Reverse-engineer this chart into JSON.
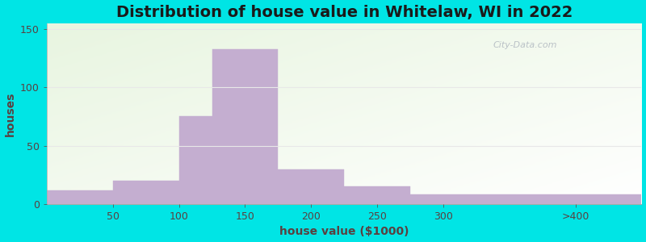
{
  "title": "Distribution of house value in Whitelaw, WI in 2022",
  "xlabel": "house value ($1000)",
  "ylabel": "houses",
  "bar_edges": [
    0,
    50,
    100,
    125,
    175,
    225,
    275,
    325,
    450
  ],
  "bar_values": [
    12,
    20,
    75,
    133,
    30,
    15,
    8,
    8
  ],
  "bar_color": "#c4aed0",
  "bar_edge_color": "#c4aed0",
  "xtick_positions": [
    50,
    100,
    150,
    200,
    250,
    300,
    400
  ],
  "xtick_labels": [
    "50",
    "100",
    "150",
    "200",
    "250",
    "300",
    ">400"
  ],
  "ytick_values": [
    0,
    50,
    100,
    150
  ],
  "xlim": [
    0,
    450
  ],
  "ylim": [
    0,
    155
  ],
  "background_outer": "#00e5e5",
  "grid_color": "#e8e8e8",
  "title_fontsize": 14,
  "axis_label_fontsize": 10,
  "tick_fontsize": 9,
  "title_color": "#1a1a1a",
  "label_color": "#5a4040",
  "watermark_text": "City-Data.com"
}
